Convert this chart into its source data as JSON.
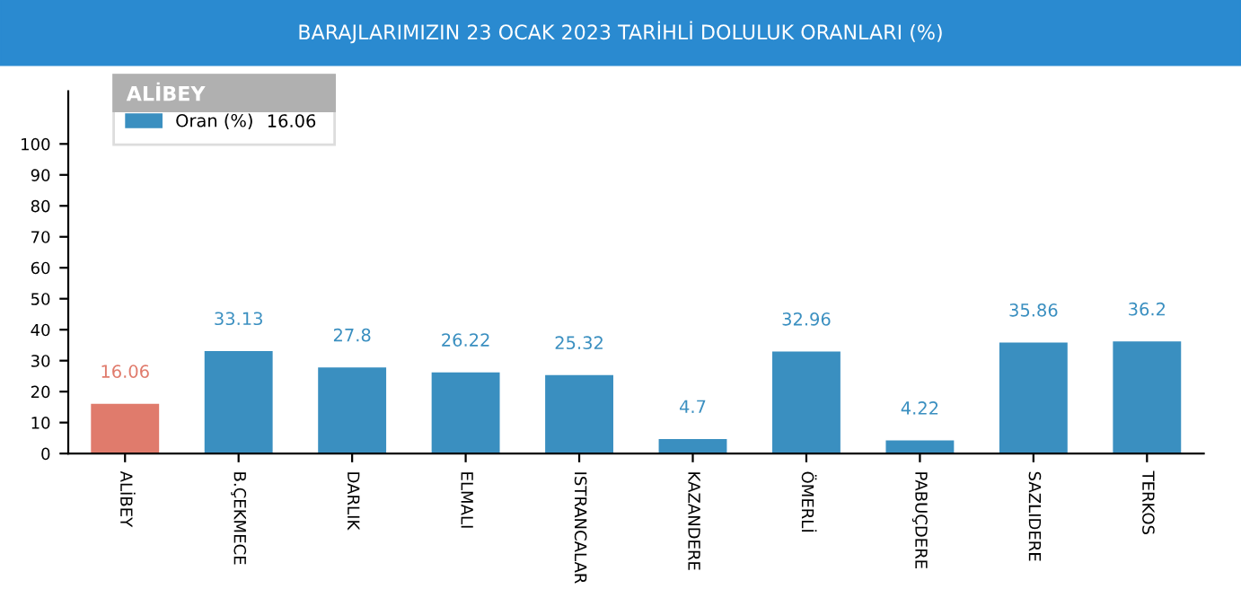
{
  "chart_data": {
    "type": "bar",
    "title": "BARAJLARIMIZIN 23 OCAK 2023 TARİHLİ DOLULUK ORANLARI (%)",
    "categories": [
      "ALİBEY",
      "B.ÇEKMECE",
      "DARLIK",
      "ELMALI",
      "ISTRANCALAR",
      "KAZANDERE",
      "ÖMERLİ",
      "PABUÇDERE",
      "SAZLIDERE",
      "TERKOS"
    ],
    "series": [
      {
        "name": "Oran (%)",
        "color": "#3a8fc0",
        "colors": [
          "#e07b6c",
          "#3a8fc0",
          "#3a8fc0",
          "#3a8fc0",
          "#3a8fc0",
          "#3a8fc0",
          "#3a8fc0",
          "#3a8fc0",
          "#3a8fc0",
          "#3a8fc0"
        ],
        "values": [
          16.06,
          33.13,
          27.8,
          26.22,
          25.32,
          4.7,
          32.96,
          4.22,
          35.86,
          36.2
        ]
      }
    ],
    "data_labels": true,
    "legend": "top left",
    "legend_title": "ALİBEY",
    "annotations": [
      "16.06"
    ],
    "ylim": [
      0,
      117
    ],
    "yticks": [
      0,
      10,
      20,
      30,
      40,
      50,
      60,
      70,
      80,
      90,
      100
    ],
    "grid": false
  }
}
